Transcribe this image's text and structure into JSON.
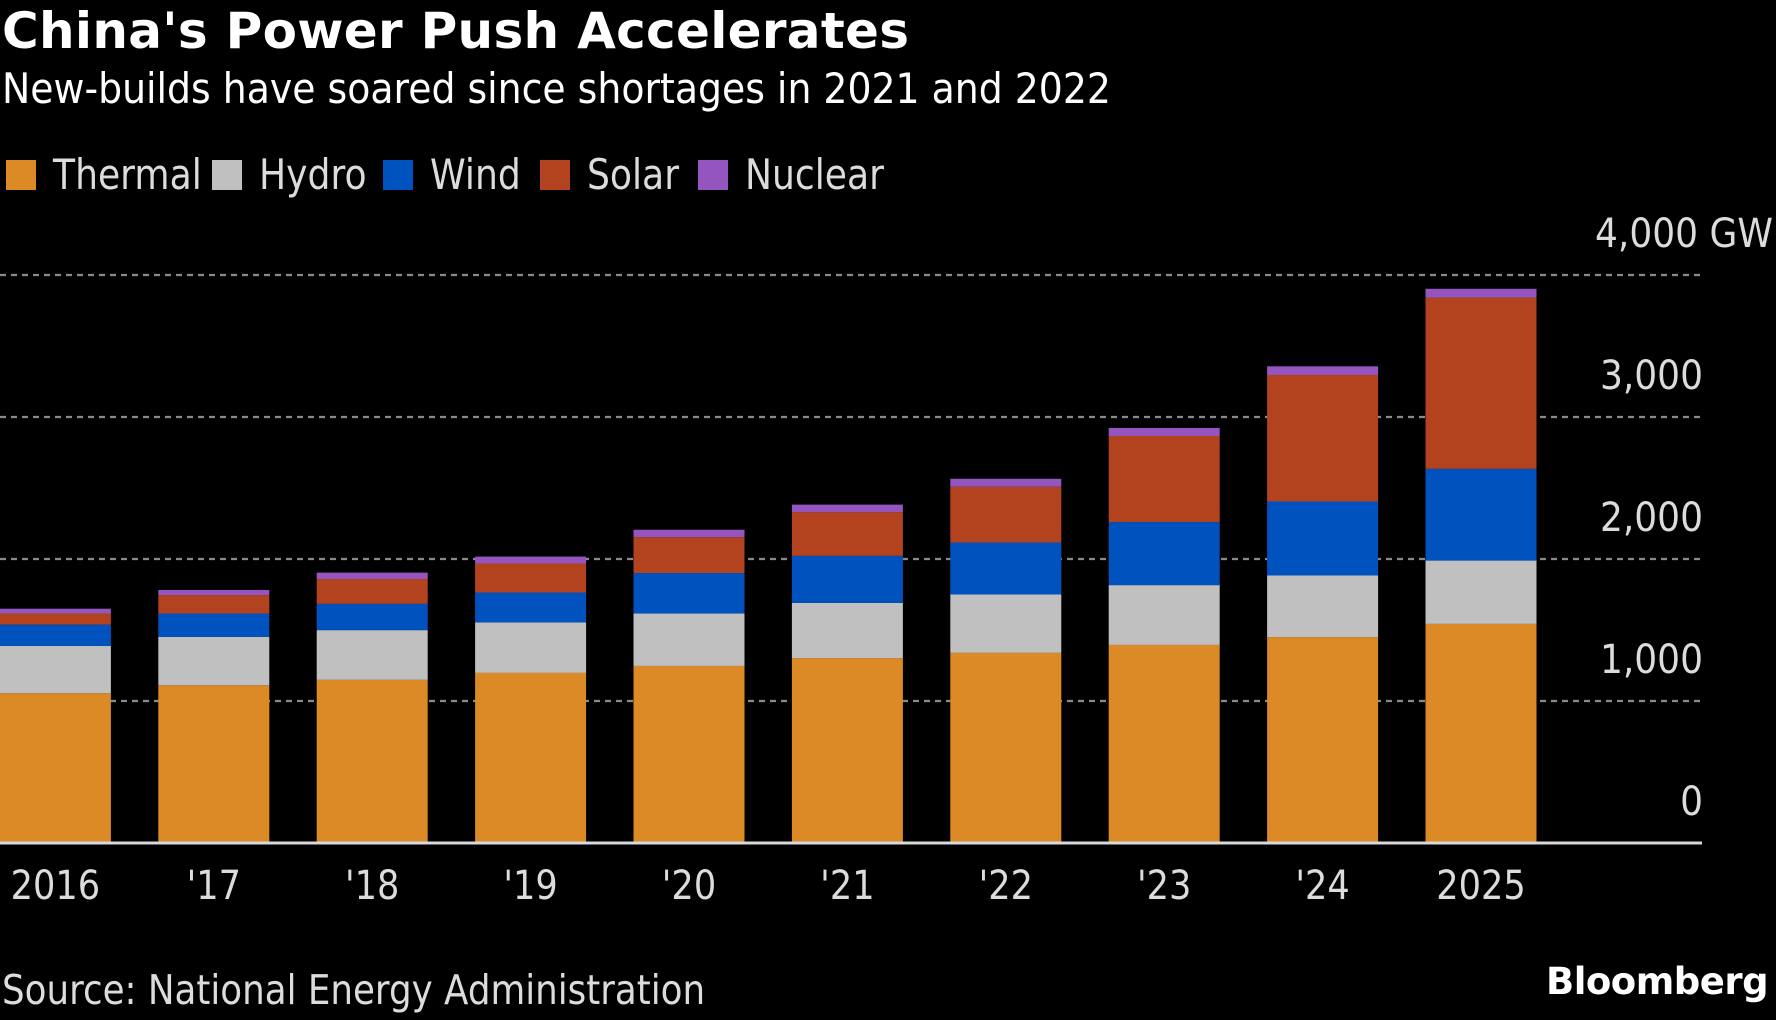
{
  "header": {
    "title": "China's Power Push Accelerates",
    "subtitle": "New-builds have soared since shortages in 2021 and 2022"
  },
  "footer": {
    "source": "Source: National Energy Administration",
    "brand": "Bloomberg"
  },
  "chart_data": {
    "type": "bar",
    "stacked": true,
    "title": "China's Power Push Accelerates",
    "subtitle": "New-builds have soared since shortages in 2021 and 2022",
    "xlabel": "",
    "ylabel": "GW",
    "categories": [
      "2016",
      "'17",
      "'18",
      "'19",
      "'20",
      "'21",
      "'22",
      "'23",
      "'24",
      "2025"
    ],
    "series": [
      {
        "name": "Thermal",
        "color": "#DB8A26",
        "values": [
          1055,
          1111,
          1149,
          1198,
          1247,
          1302,
          1339,
          1395,
          1450,
          1543
        ]
      },
      {
        "name": "Hydro",
        "color": "#C0C0C0",
        "values": [
          333,
          341,
          350,
          355,
          369,
          389,
          411,
          421,
          434,
          446
        ]
      },
      {
        "name": "Wind",
        "color": "#0052BE",
        "values": [
          150,
          164,
          185,
          211,
          285,
          331,
          366,
          444,
          521,
          646
        ]
      },
      {
        "name": "Solar",
        "color": "#B3421E",
        "values": [
          78,
          130,
          175,
          204,
          253,
          308,
          393,
          606,
          891,
          1206
        ]
      },
      {
        "name": "Nuclear",
        "color": "#9455BE",
        "values": [
          34,
          36,
          45,
          49,
          52,
          53,
          56,
          57,
          61,
          62
        ]
      }
    ],
    "ylim": [
      0,
      4000
    ],
    "yticks": [
      0,
      1000,
      2000,
      3000,
      4000
    ],
    "ytick_labels": [
      "0",
      "1,000",
      "2,000",
      "3,000",
      "4,000 GW"
    ],
    "y_axis_side": "right",
    "grid": true,
    "grid_style": "dotted",
    "legend_position": "top-left",
    "background": "#000000"
  }
}
